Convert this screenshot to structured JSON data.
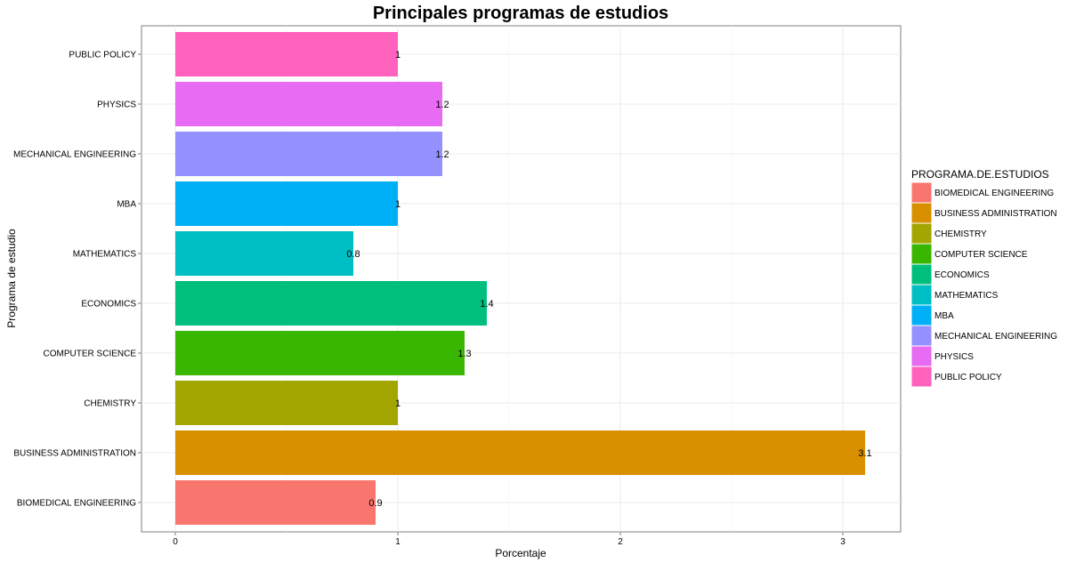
{
  "chart_data": {
    "type": "bar",
    "orientation": "horizontal",
    "title": "Principales programas de estudios",
    "xlabel": "Porcentaje",
    "ylabel": "Programa de estudio",
    "xlim": [
      0,
      3.25
    ],
    "x_ticks": [
      0,
      1,
      2,
      3
    ],
    "grid": true,
    "legend": {
      "title": "PROGRAMA.DE.ESTUDIOS",
      "position": "right"
    },
    "categories": [
      "BIOMEDICAL ENGINEERING",
      "BUSINESS ADMINISTRATION",
      "CHEMISTRY",
      "COMPUTER SCIENCE",
      "ECONOMICS",
      "MATHEMATICS",
      "MBA",
      "MECHANICAL ENGINEERING",
      "PHYSICS",
      "PUBLIC POLICY"
    ],
    "values": [
      0.9,
      3.1,
      1,
      1.3,
      1.4,
      0.8,
      1,
      1.2,
      1.2,
      1
    ],
    "value_labels": [
      "0.9",
      "3.1",
      "1",
      "1.3",
      "1.4",
      "0.8",
      "1",
      "1.2",
      "1.2",
      "1"
    ],
    "colors": [
      "#F8766D",
      "#D89000",
      "#A3A500",
      "#39B600",
      "#00BF7D",
      "#00BFC4",
      "#00B0F6",
      "#9590FF",
      "#E76BF3",
      "#FF62BC"
    ]
  }
}
